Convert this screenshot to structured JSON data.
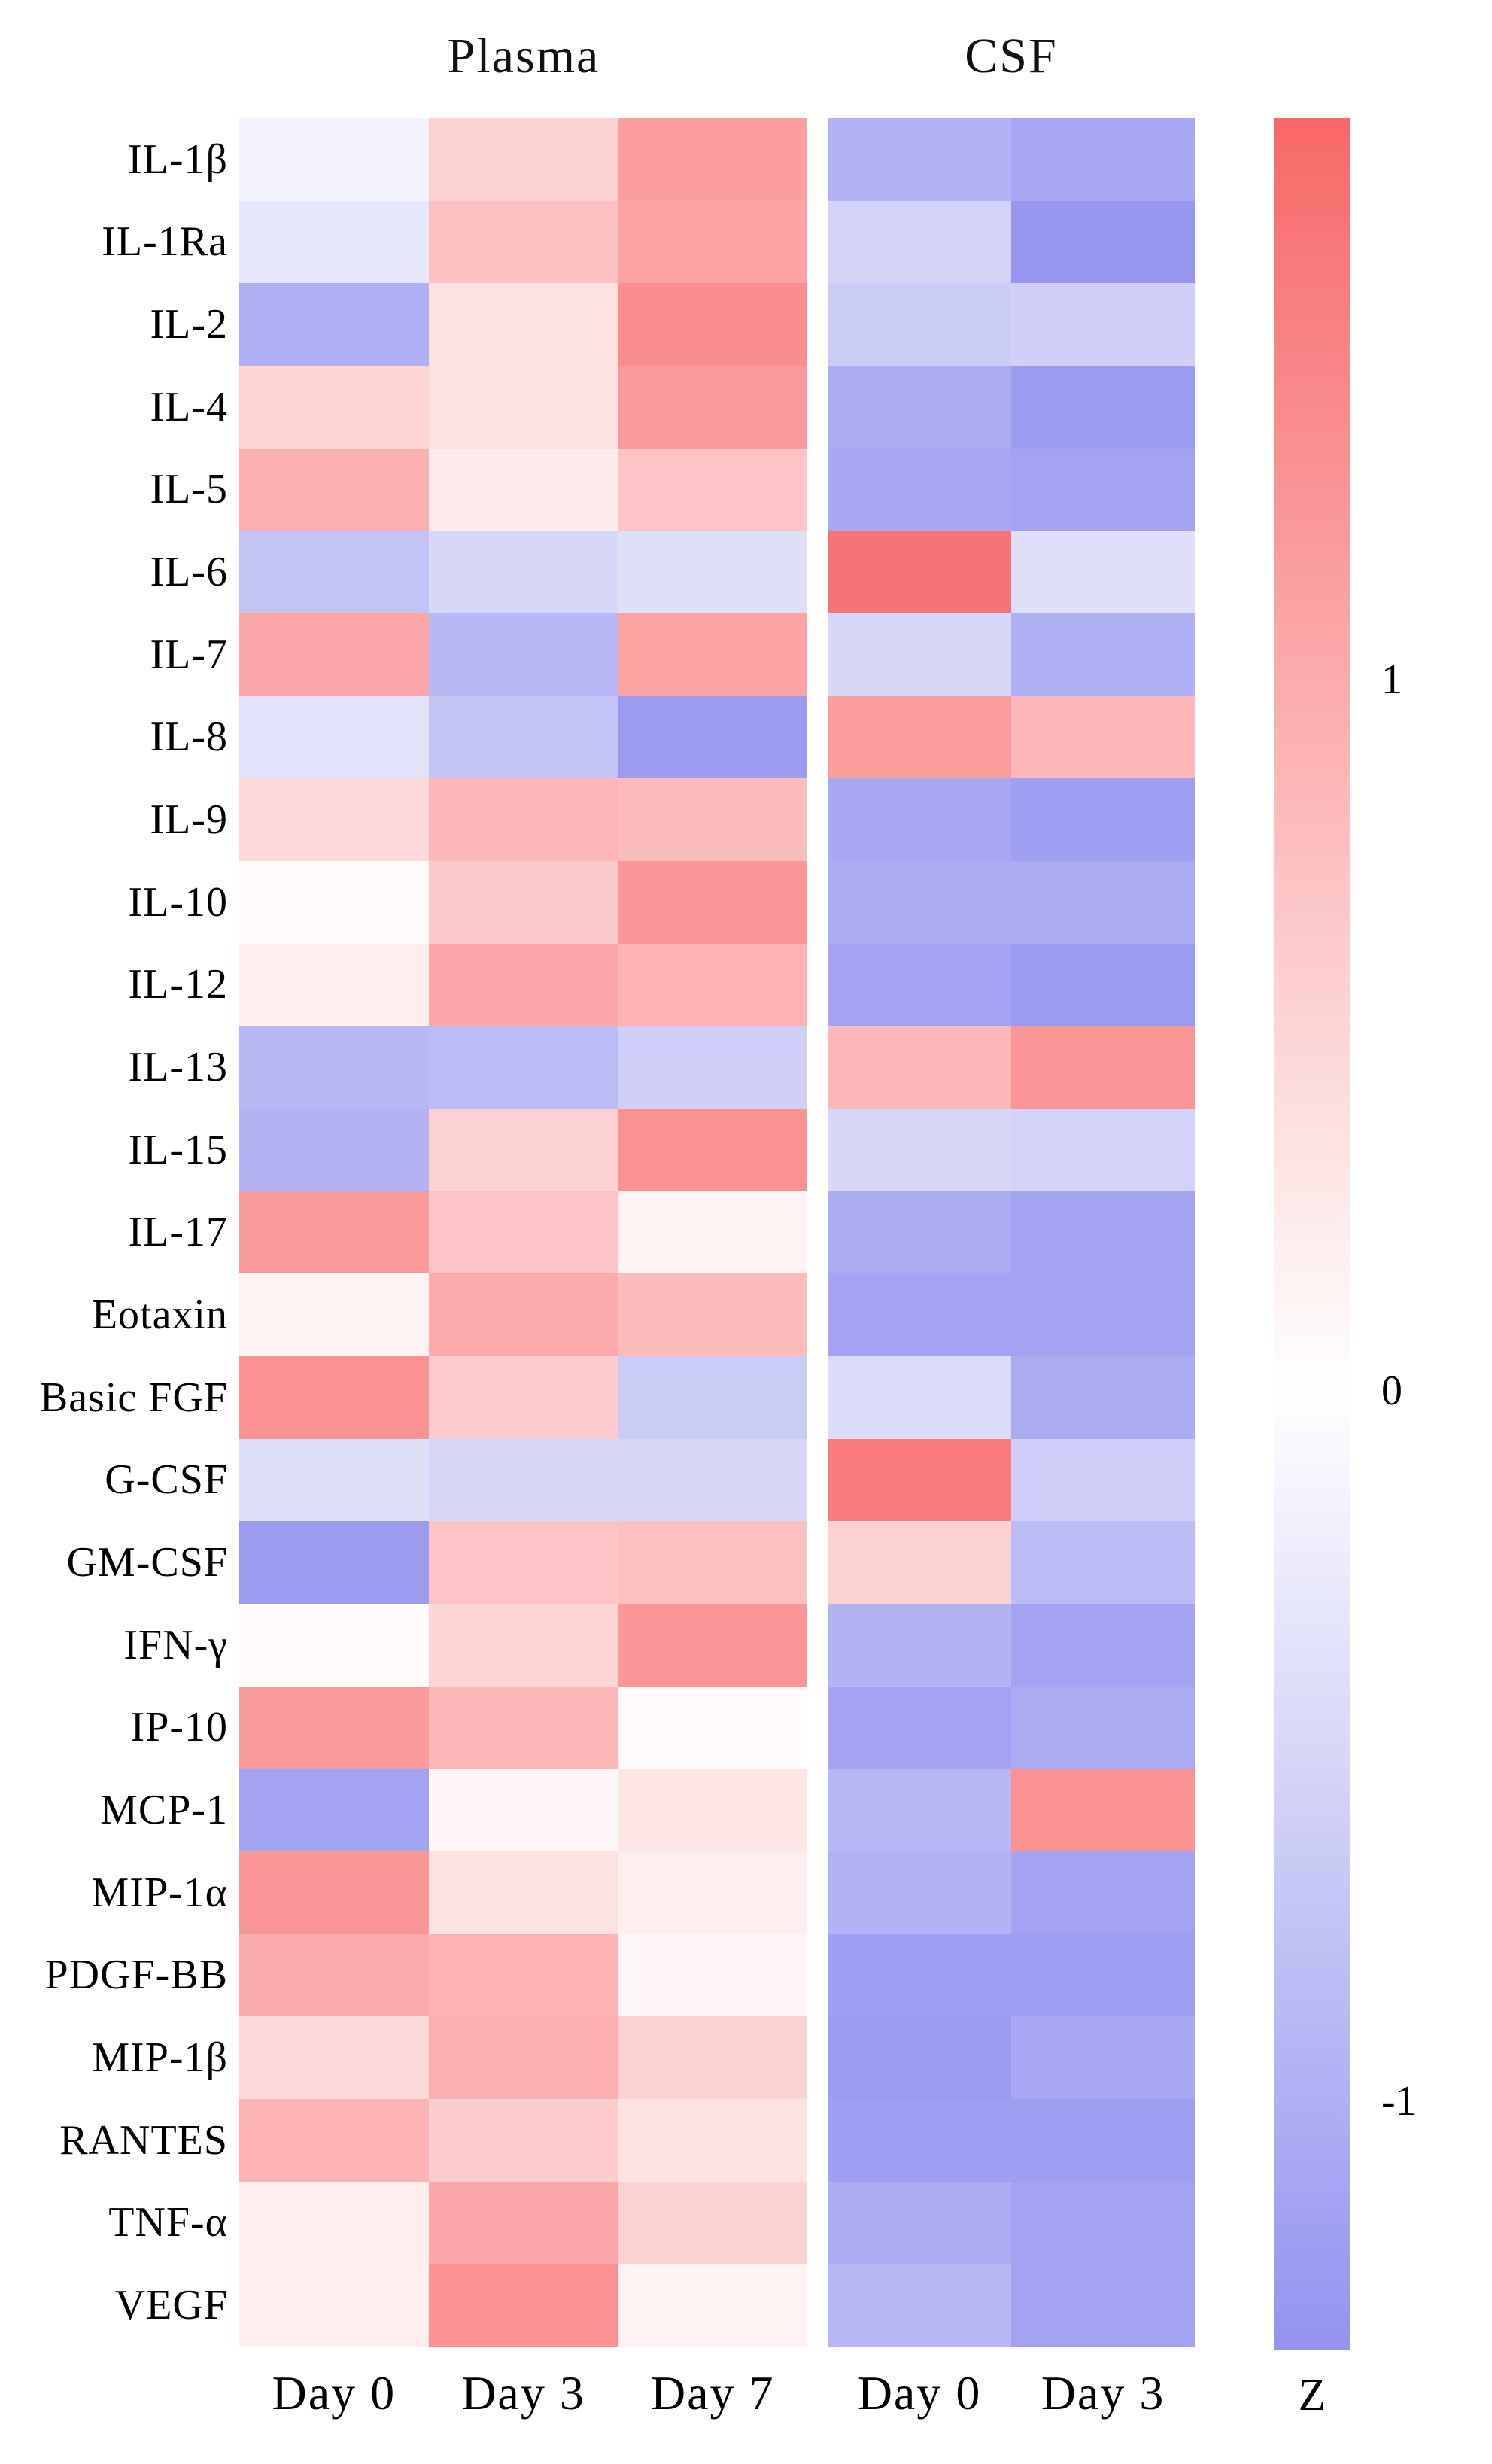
{
  "figure": {
    "background": "#ffffff",
    "panel_titles": {
      "plasma": "Plasma",
      "csf": "CSF"
    },
    "colorbar": {
      "axis_label": "Z",
      "ticks": [
        {
          "label": "1",
          "value": 1
        },
        {
          "label": "0",
          "value": 0
        },
        {
          "label": "-1",
          "value": -1
        }
      ],
      "vmax": 1.79,
      "vmin": -1.35,
      "max_color": "#f86969",
      "mid_color": "#ffffff",
      "min_color": "#9393ef"
    }
  },
  "chart_data": {
    "type": "heatmap",
    "title": "",
    "zlabel": "Z",
    "zlim": [
      -1.35,
      1.79
    ],
    "colormap": "blue-white-red",
    "legend_position": "right-colorbar",
    "grid": false,
    "column_groups": [
      {
        "name": "Plasma",
        "columns": [
          "Day 0",
          "Day 3",
          "Day 7"
        ]
      },
      {
        "name": "CSF",
        "columns": [
          "Day 0",
          "Day 3"
        ]
      }
    ],
    "rows": [
      {
        "label": "IL-1β",
        "plasma": [
          -0.15,
          0.55,
          1.15
        ],
        "csf": [
          -0.95,
          -1.1
        ]
      },
      {
        "label": "IL-1Ra",
        "plasma": [
          -0.3,
          0.75,
          1.1
        ],
        "csf": [
          -0.55,
          -1.3
        ]
      },
      {
        "label": "IL-2",
        "plasma": [
          -1.0,
          0.35,
          1.35
        ],
        "csf": [
          -0.65,
          -0.6
        ]
      },
      {
        "label": "IL-4",
        "plasma": [
          0.5,
          0.35,
          1.2
        ],
        "csf": [
          -1.05,
          -1.25
        ]
      },
      {
        "label": "IL-5",
        "plasma": [
          0.95,
          0.25,
          0.7
        ],
        "csf": [
          -1.1,
          -1.15
        ]
      },
      {
        "label": "IL-6",
        "plasma": [
          -0.75,
          -0.5,
          -0.4
        ],
        "csf": [
          1.65,
          -0.4
        ]
      },
      {
        "label": "IL-7",
        "plasma": [
          1.05,
          -0.9,
          1.1
        ],
        "csf": [
          -0.5,
          -1.0
        ]
      },
      {
        "label": "IL-8",
        "plasma": [
          -0.35,
          -0.75,
          -1.25
        ],
        "csf": [
          1.15,
          0.85
        ]
      },
      {
        "label": "IL-9",
        "plasma": [
          0.45,
          0.85,
          0.8
        ],
        "csf": [
          -1.1,
          -1.2
        ]
      },
      {
        "label": "IL-10",
        "plasma": [
          0.05,
          0.65,
          1.25
        ],
        "csf": [
          -1.05,
          -1.05
        ]
      },
      {
        "label": "IL-12",
        "plasma": [
          0.2,
          1.05,
          0.9
        ],
        "csf": [
          -1.15,
          -1.25
        ]
      },
      {
        "label": "IL-13",
        "plasma": [
          -0.9,
          -0.85,
          -0.6
        ],
        "csf": [
          0.85,
          1.25
        ]
      },
      {
        "label": "IL-15",
        "plasma": [
          -0.95,
          0.55,
          1.3
        ],
        "csf": [
          -0.5,
          -0.55
        ]
      },
      {
        "label": "IL-17",
        "plasma": [
          1.2,
          0.7,
          0.15
        ],
        "csf": [
          -1.05,
          -1.15
        ]
      },
      {
        "label": "Eotaxin",
        "plasma": [
          0.15,
          1.0,
          0.8
        ],
        "csf": [
          -1.15,
          -1.15
        ]
      },
      {
        "label": "Basic FGF",
        "plasma": [
          1.3,
          0.6,
          -0.65
        ],
        "csf": [
          -0.45,
          -1.05
        ]
      },
      {
        "label": "G-CSF",
        "plasma": [
          -0.4,
          -0.5,
          -0.5
        ],
        "csf": [
          1.55,
          -0.6
        ]
      },
      {
        "label": "GM-CSF",
        "plasma": [
          -1.25,
          0.7,
          0.75
        ],
        "csf": [
          0.55,
          -0.85
        ]
      },
      {
        "label": "IFN-γ",
        "plasma": [
          0.05,
          0.5,
          1.25
        ],
        "csf": [
          -0.95,
          -1.15
        ]
      },
      {
        "label": "IP-10",
        "plasma": [
          1.2,
          0.85,
          0.05
        ],
        "csf": [
          -1.15,
          -1.05
        ]
      },
      {
        "label": "MCP-1",
        "plasma": [
          -1.15,
          0.1,
          0.3
        ],
        "csf": [
          -0.9,
          1.3
        ]
      },
      {
        "label": "MIP-1α",
        "plasma": [
          1.25,
          0.35,
          0.2
        ],
        "csf": [
          -0.95,
          -1.15
        ]
      },
      {
        "label": "PDGF-BB",
        "plasma": [
          1.0,
          0.9,
          0.1
        ],
        "csf": [
          -1.2,
          -1.2
        ]
      },
      {
        "label": "MIP-1β",
        "plasma": [
          0.45,
          0.95,
          0.55
        ],
        "csf": [
          -1.25,
          -1.1
        ]
      },
      {
        "label": "RANTES",
        "plasma": [
          0.9,
          0.6,
          0.35
        ],
        "csf": [
          -1.2,
          -1.2
        ]
      },
      {
        "label": "TNF-α",
        "plasma": [
          0.2,
          1.05,
          0.55
        ],
        "csf": [
          -1.05,
          -1.15
        ]
      },
      {
        "label": "VEGF",
        "plasma": [
          0.2,
          1.3,
          0.15
        ],
        "csf": [
          -0.9,
          -1.15
        ]
      }
    ]
  }
}
